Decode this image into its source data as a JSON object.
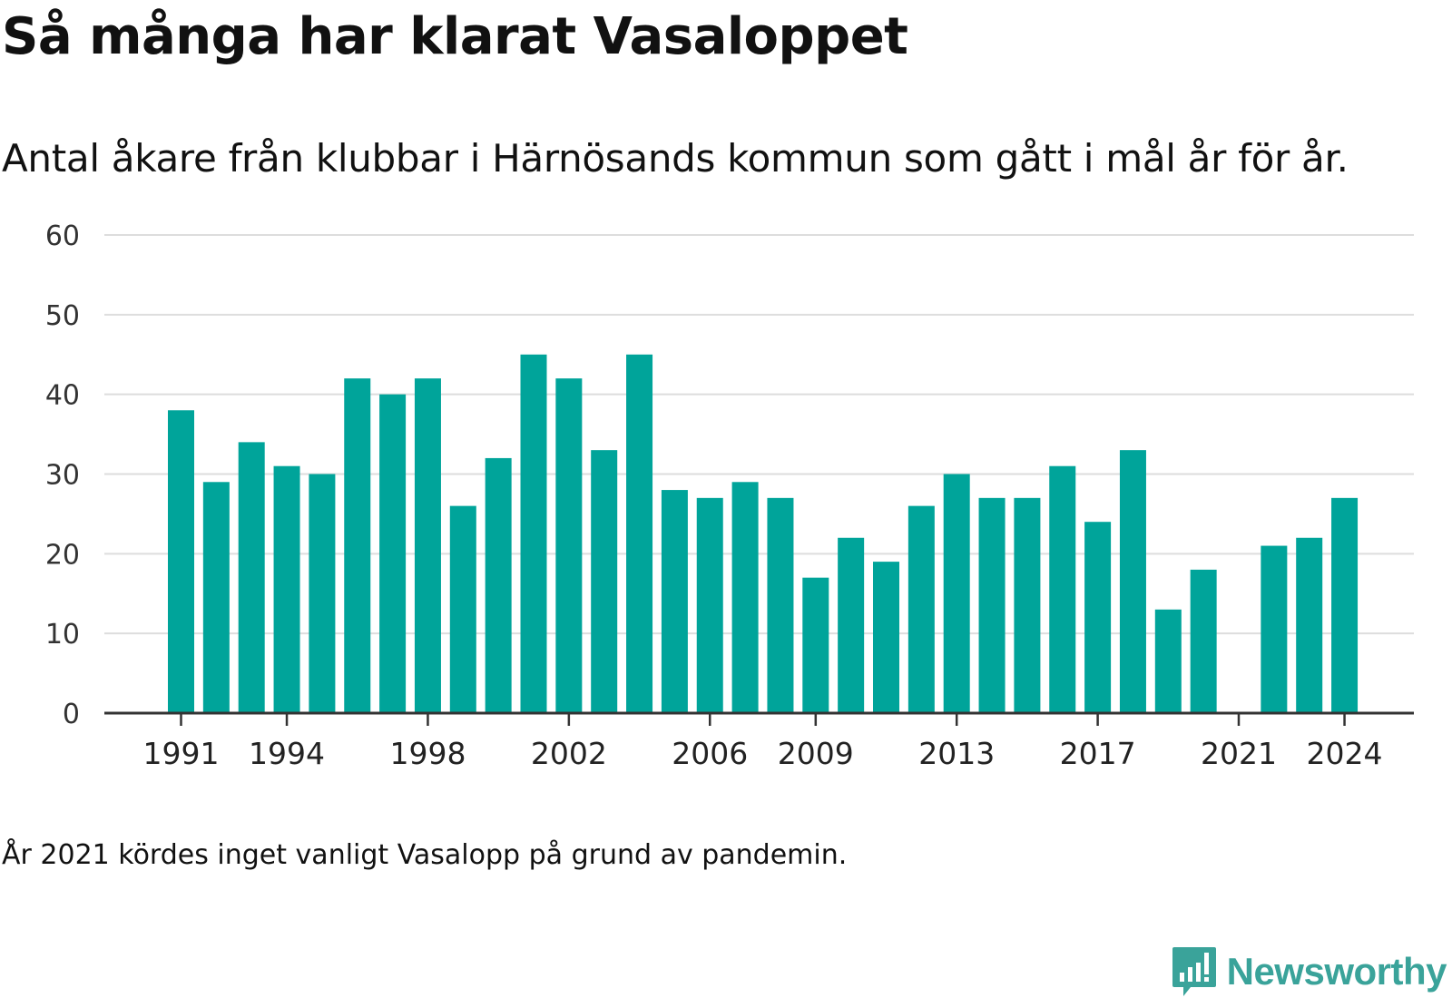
{
  "title": "Så många har klarat Vasaloppet",
  "subtitle": "Antal åkare från klubbar i Härnösands kommun som gått i mål år för år.",
  "note": "År 2021 kördes inget vanligt Vasalopp på grund av pandemin.",
  "brand": {
    "name": "Newsworthy",
    "icon": "newsworthy-logo-icon"
  },
  "colors": {
    "bar": "#00a49a",
    "grid": "#dddddd",
    "axis": "#333333",
    "brand": "#3aa39a"
  },
  "chart_data": {
    "type": "bar",
    "categories": [
      1991,
      1992,
      1993,
      1994,
      1995,
      1996,
      1997,
      1998,
      1999,
      2000,
      2001,
      2002,
      2003,
      2004,
      2005,
      2006,
      2007,
      2008,
      2009,
      2010,
      2011,
      2012,
      2013,
      2014,
      2015,
      2016,
      2017,
      2018,
      2019,
      2020,
      2021,
      2022,
      2023,
      2024
    ],
    "values": [
      38,
      29,
      34,
      31,
      30,
      42,
      40,
      42,
      26,
      32,
      45,
      42,
      33,
      45,
      28,
      27,
      29,
      27,
      17,
      22,
      19,
      26,
      30,
      27,
      27,
      31,
      24,
      33,
      13,
      18,
      null,
      21,
      22,
      27
    ],
    "x_tick_labels": [
      "1991",
      "1994",
      "1998",
      "2002",
      "2006",
      "2009",
      "2013",
      "2017",
      "2021",
      "2024"
    ],
    "y_ticks": [
      0,
      10,
      20,
      30,
      40,
      50,
      60
    ],
    "ylim": [
      0,
      60
    ],
    "grid": true,
    "legend": "none"
  }
}
